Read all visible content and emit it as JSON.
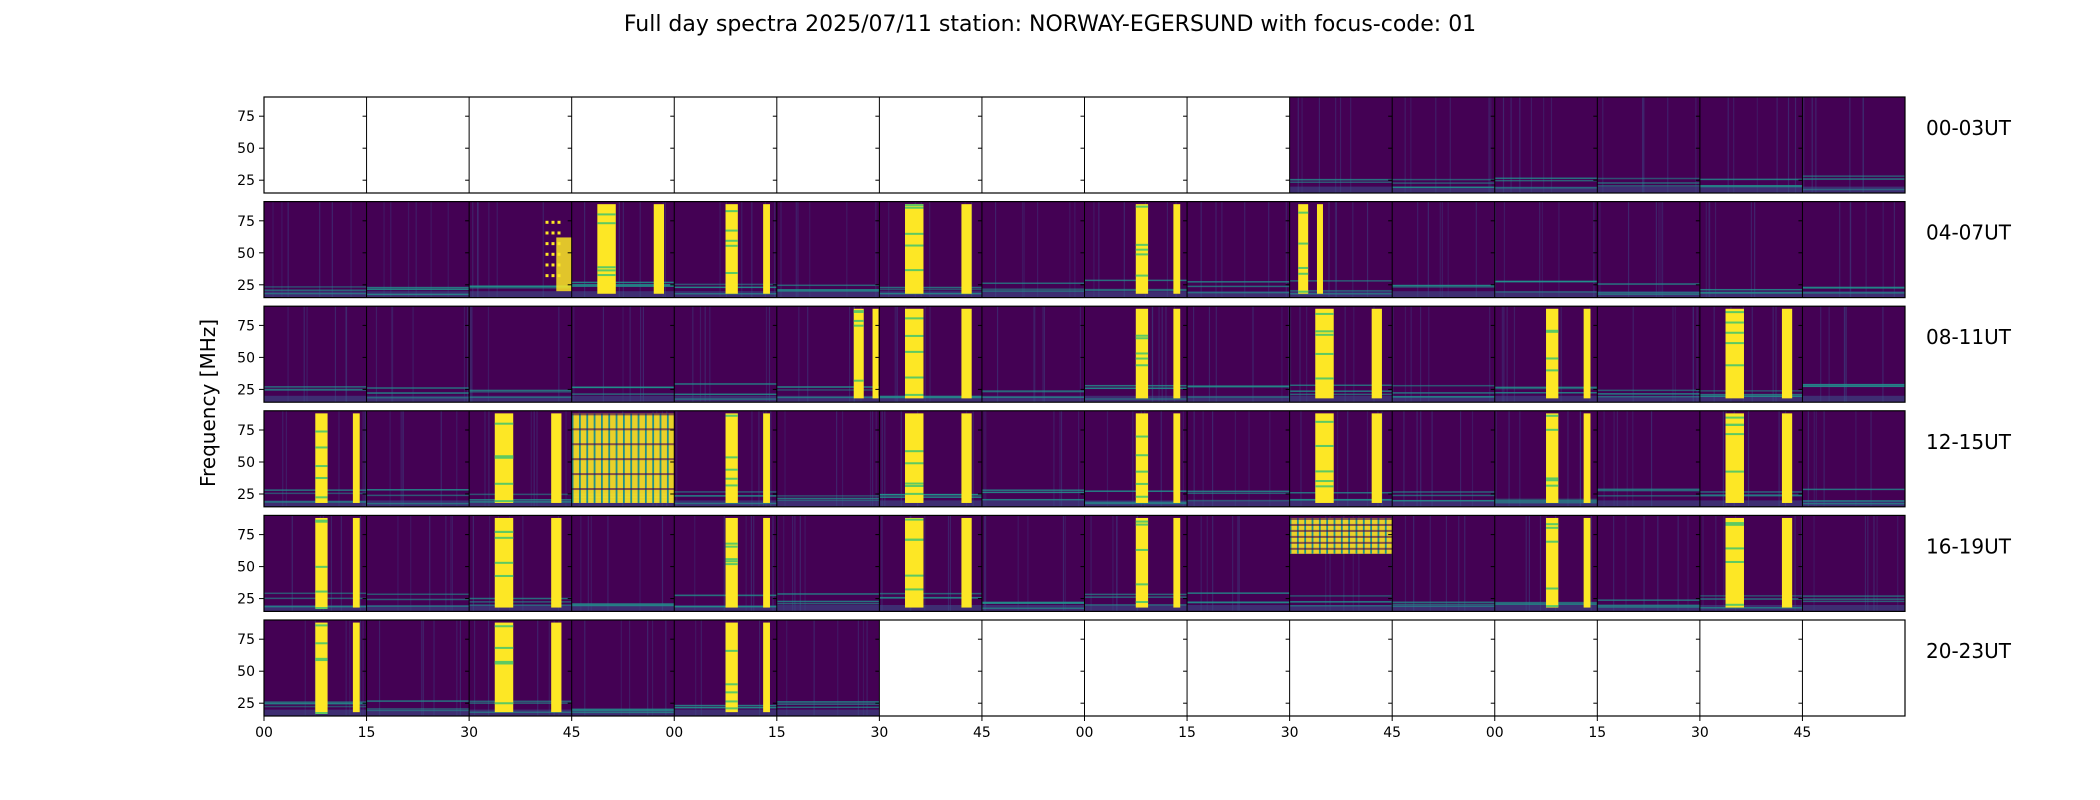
{
  "title": "Full day spectra 2025/07/11 station: NORWAY-EGERSUND with focus-code: 01",
  "colors": {
    "background": "#440154",
    "bright": "#fde725",
    "teal": "#21918c",
    "green": "#5ec962",
    "blue": "#3b528b"
  },
  "chart_data": {
    "type": "heatmap",
    "title": "Full day spectra 2025/07/11 station: NORWAY-EGERSUND with focus-code: 01",
    "ylabel": "Frequency [MHz]",
    "xlabel": "",
    "ylim": [
      15,
      90
    ],
    "ytick_labels": [
      "75",
      "50",
      "25"
    ],
    "ytick_values": [
      75,
      50,
      25
    ],
    "xtick_labels": [
      "00",
      "15",
      "30",
      "45",
      "00",
      "15",
      "30",
      "45",
      "00",
      "15",
      "30",
      "45",
      "00",
      "15",
      "30",
      "45"
    ],
    "rows": [
      {
        "label": "00-03UT",
        "panels": [
          0,
          0,
          0,
          0,
          0,
          0,
          0,
          0,
          0,
          0,
          1,
          1,
          1,
          1,
          1,
          1
        ]
      },
      {
        "label": "04-07UT",
        "panels": [
          1,
          1,
          1,
          1,
          1,
          1,
          1,
          1,
          1,
          1,
          1,
          1,
          1,
          1,
          1,
          1
        ]
      },
      {
        "label": "08-11UT",
        "panels": [
          1,
          1,
          1,
          1,
          1,
          1,
          1,
          1,
          1,
          1,
          1,
          1,
          1,
          1,
          1,
          1
        ]
      },
      {
        "label": "12-15UT",
        "panels": [
          1,
          1,
          1,
          1,
          1,
          1,
          1,
          1,
          1,
          1,
          1,
          1,
          1,
          1,
          1,
          1
        ]
      },
      {
        "label": "16-19UT",
        "panels": [
          1,
          1,
          1,
          1,
          1,
          1,
          1,
          1,
          1,
          1,
          1,
          1,
          1,
          1,
          1,
          1
        ]
      },
      {
        "label": "20-23UT",
        "panels": [
          1,
          1,
          1,
          1,
          1,
          1,
          0,
          0,
          0,
          0,
          0,
          0,
          0,
          0,
          0,
          0
        ]
      }
    ],
    "bursts": [
      {
        "row": 1,
        "panel": 2,
        "start_min": 10,
        "end_min": 15,
        "f_low": 25,
        "f_high": 75,
        "kind": "dotted"
      },
      {
        "row": 1,
        "panel": 3,
        "start_min": 0,
        "end_min": 15,
        "f_low": 18,
        "f_high": 88,
        "kind": "band"
      },
      {
        "row": 1,
        "panel": 4,
        "start_min": 5,
        "end_min": 15,
        "f_low": 18,
        "f_high": 88,
        "kind": "band"
      },
      {
        "row": 1,
        "panel": 6,
        "start_min": 0,
        "end_min": 15,
        "f_low": 18,
        "f_high": 88,
        "kind": "band"
      },
      {
        "row": 1,
        "panel": 8,
        "start_min": 5,
        "end_min": 15,
        "f_low": 18,
        "f_high": 88,
        "kind": "band"
      },
      {
        "row": 1,
        "panel": 10,
        "start_min": 0,
        "end_min": 5,
        "f_low": 18,
        "f_high": 88,
        "kind": "band"
      },
      {
        "row": 2,
        "panel": 5,
        "start_min": 10,
        "end_min": 15,
        "f_low": 18,
        "f_high": 88,
        "kind": "band"
      },
      {
        "row": 2,
        "panel": 6,
        "start_min": 0,
        "end_min": 15,
        "f_low": 18,
        "f_high": 88,
        "kind": "band"
      },
      {
        "row": 2,
        "panel": 8,
        "start_min": 5,
        "end_min": 15,
        "f_low": 18,
        "f_high": 88,
        "kind": "band"
      },
      {
        "row": 2,
        "panel": 10,
        "start_min": 0,
        "end_min": 15,
        "f_low": 18,
        "f_high": 88,
        "kind": "band"
      },
      {
        "row": 2,
        "panel": 12,
        "start_min": 5,
        "end_min": 15,
        "f_low": 18,
        "f_high": 88,
        "kind": "band"
      },
      {
        "row": 2,
        "panel": 14,
        "start_min": 0,
        "end_min": 15,
        "f_low": 18,
        "f_high": 88,
        "kind": "band"
      },
      {
        "row": 3,
        "panel": 0,
        "start_min": 5,
        "end_min": 15,
        "f_low": 18,
        "f_high": 88,
        "kind": "band"
      },
      {
        "row": 3,
        "panel": 2,
        "start_min": 0,
        "end_min": 15,
        "f_low": 18,
        "f_high": 88,
        "kind": "band"
      },
      {
        "row": 3,
        "panel": 3,
        "start_min": 0,
        "end_min": 15,
        "f_low": 18,
        "f_high": 88,
        "kind": "dense"
      },
      {
        "row": 3,
        "panel": 4,
        "start_min": 5,
        "end_min": 15,
        "f_low": 18,
        "f_high": 88,
        "kind": "band"
      },
      {
        "row": 3,
        "panel": 6,
        "start_min": 0,
        "end_min": 15,
        "f_low": 18,
        "f_high": 88,
        "kind": "band"
      },
      {
        "row": 3,
        "panel": 8,
        "start_min": 5,
        "end_min": 15,
        "f_low": 18,
        "f_high": 88,
        "kind": "band"
      },
      {
        "row": 3,
        "panel": 10,
        "start_min": 0,
        "end_min": 15,
        "f_low": 18,
        "f_high": 88,
        "kind": "band"
      },
      {
        "row": 3,
        "panel": 12,
        "start_min": 5,
        "end_min": 15,
        "f_low": 18,
        "f_high": 88,
        "kind": "band"
      },
      {
        "row": 3,
        "panel": 14,
        "start_min": 0,
        "end_min": 15,
        "f_low": 18,
        "f_high": 88,
        "kind": "band"
      },
      {
        "row": 4,
        "panel": 0,
        "start_min": 5,
        "end_min": 15,
        "f_low": 18,
        "f_high": 88,
        "kind": "band"
      },
      {
        "row": 4,
        "panel": 2,
        "start_min": 0,
        "end_min": 15,
        "f_low": 18,
        "f_high": 88,
        "kind": "band"
      },
      {
        "row": 4,
        "panel": 4,
        "start_min": 5,
        "end_min": 15,
        "f_low": 18,
        "f_high": 88,
        "kind": "band"
      },
      {
        "row": 4,
        "panel": 6,
        "start_min": 0,
        "end_min": 15,
        "f_low": 18,
        "f_high": 88,
        "kind": "band"
      },
      {
        "row": 4,
        "panel": 8,
        "start_min": 5,
        "end_min": 15,
        "f_low": 18,
        "f_high": 88,
        "kind": "band"
      },
      {
        "row": 4,
        "panel": 10,
        "start_min": 0,
        "end_min": 15,
        "f_low": 60,
        "f_high": 88,
        "kind": "dense"
      },
      {
        "row": 4,
        "panel": 12,
        "start_min": 5,
        "end_min": 15,
        "f_low": 18,
        "f_high": 88,
        "kind": "band"
      },
      {
        "row": 4,
        "panel": 14,
        "start_min": 0,
        "end_min": 15,
        "f_low": 18,
        "f_high": 88,
        "kind": "band"
      },
      {
        "row": 5,
        "panel": 0,
        "start_min": 5,
        "end_min": 15,
        "f_low": 18,
        "f_high": 88,
        "kind": "band"
      },
      {
        "row": 5,
        "panel": 2,
        "start_min": 0,
        "end_min": 15,
        "f_low": 18,
        "f_high": 88,
        "kind": "band"
      },
      {
        "row": 5,
        "panel": 4,
        "start_min": 5,
        "end_min": 15,
        "f_low": 18,
        "f_high": 88,
        "kind": "band"
      }
    ]
  }
}
